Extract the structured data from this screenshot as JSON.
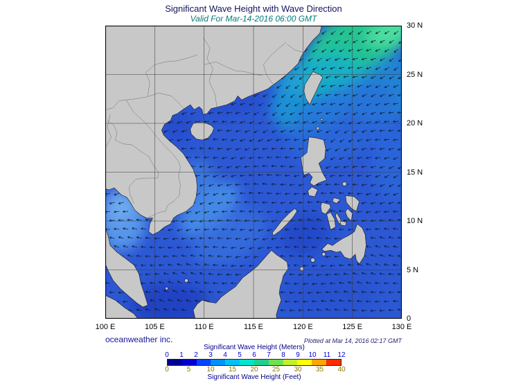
{
  "header": {
    "title": "Significant Wave Height with Wave Direction",
    "subtitle": "Valid For Mar-14-2016 06:00 GMT"
  },
  "map": {
    "lat_labels": [
      "30 N",
      "25 N",
      "20 N",
      "15 N",
      "10 N",
      "5 N",
      "0"
    ],
    "lon_labels": [
      "100 E",
      "105 E",
      "110 E",
      "115 E",
      "120 E",
      "125 E",
      "130 E"
    ]
  },
  "footer": {
    "credit": "oceanweather inc.",
    "plotted_note": "Plotted at Mar 14, 2016 02:17 GMT"
  },
  "colorbar": {
    "title_meters": "Significant Wave Height (Meters)",
    "title_feet": "Significant Wave Height (Feet)",
    "meters_ticks": [
      "0",
      "1",
      "2",
      "3",
      "4",
      "5",
      "6",
      "7",
      "8",
      "9",
      "10",
      "11",
      "12"
    ],
    "feet_ticks": [
      "0",
      "5",
      "10",
      "15",
      "20",
      "25",
      "30",
      "35",
      "40"
    ],
    "segment_colors": [
      "#000091",
      "#0000d2",
      "#0046ff",
      "#0091ff",
      "#00c3f5",
      "#00e6cd",
      "#23cd8c",
      "#6ee150",
      "#c3ef2d",
      "#ffff00",
      "#ffa500",
      "#ff2d00"
    ],
    "ocean_base_color": "#2c58d4",
    "land_color": "#c8c8c8"
  }
}
